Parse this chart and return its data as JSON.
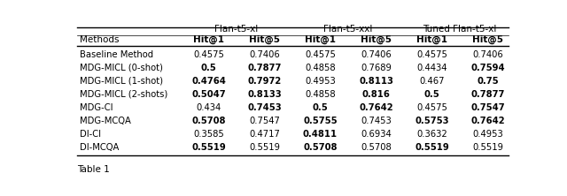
{
  "col_groups": [
    {
      "label": "Flan-t5-xl"
    },
    {
      "label": "Flan-t5-xxl"
    },
    {
      "label": "Tuned Flan-t5-xl"
    }
  ],
  "methods": [
    "Baseline Method",
    "MDG-MICL (0-shot)",
    "MDG-MICL (1-shot)",
    "MDG-MICL (2-shots)",
    "MDG-CI",
    "MDG-MCQA",
    "DI-CI",
    "DI-MCQA"
  ],
  "data": [
    [
      "0.4575",
      "0.7406",
      "0.4575",
      "0.7406",
      "0.4575",
      "0.7406"
    ],
    [
      "0.5",
      "0.7877",
      "0.4858",
      "0.7689",
      "0.4434",
      "0.7594"
    ],
    [
      "0.4764",
      "0.7972",
      "0.4953",
      "0.8113",
      "0.467",
      "0.75"
    ],
    [
      "0.5047",
      "0.8133",
      "0.4858",
      "0.816",
      "0.5",
      "0.7877"
    ],
    [
      "0.434",
      "0.7453",
      "0.5",
      "0.7642",
      "0.4575",
      "0.7547"
    ],
    [
      "0.5708",
      "0.7547",
      "0.5755",
      "0.7453",
      "0.5753",
      "0.7642"
    ],
    [
      "0.3585",
      "0.4717",
      "0.4811",
      "0.6934",
      "0.3632",
      "0.4953"
    ],
    [
      "0.5519",
      "0.5519",
      "0.5708",
      "0.5708",
      "0.5519",
      "0.5519"
    ]
  ],
  "bold": [
    [
      false,
      false,
      false,
      false,
      false,
      false
    ],
    [
      true,
      true,
      false,
      false,
      false,
      true
    ],
    [
      true,
      true,
      false,
      true,
      false,
      true
    ],
    [
      true,
      true,
      false,
      true,
      true,
      true
    ],
    [
      false,
      true,
      true,
      true,
      false,
      true
    ],
    [
      true,
      false,
      true,
      false,
      true,
      true
    ],
    [
      false,
      false,
      true,
      false,
      false,
      false
    ],
    [
      true,
      false,
      true,
      false,
      true,
      false
    ]
  ],
  "background_color": "#ffffff"
}
